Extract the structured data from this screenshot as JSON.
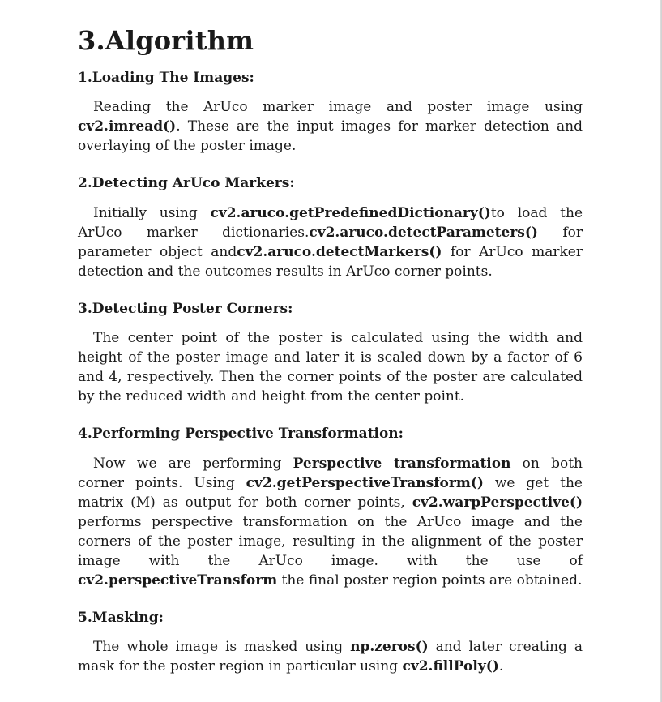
{
  "heading": "3.Algorithm",
  "sections": [
    {
      "title": "1.Loading The Images:",
      "runs": [
        {
          "t": "Reading the ArUco marker image and poster image using ",
          "b": false
        },
        {
          "t": "cv2.imread()",
          "b": true
        },
        {
          "t": ". These are the input images for marker detection and overlaying of the poster image.",
          "b": false
        }
      ]
    },
    {
      "title": "2.Detecting ArUco Markers:",
      "runs": [
        {
          "t": "Initially using ",
          "b": false
        },
        {
          "t": "cv2.aruco.getPredefinedDictionary()",
          "b": true
        },
        {
          "t": "to load the ArUco marker dictionaries.",
          "b": false
        },
        {
          "t": "cv2.aruco.detectParameters()",
          "b": true
        },
        {
          "t": " for parameter object and",
          "b": false
        },
        {
          "t": "cv2.aruco.detectMarkers()",
          "b": true
        },
        {
          "t": " for ArUco marker detection and the outcomes results in ArUco corner points.",
          "b": false
        }
      ]
    },
    {
      "title": "3.Detecting Poster Corners:",
      "runs": [
        {
          "t": "The center point of the poster is calculated using the width and height of the poster image and later it is scaled down by a factor of 6 and 4, respectively. Then the corner points of the poster are calculated by the reduced width and height from the center point.",
          "b": false
        }
      ]
    },
    {
      "title": "4.Performing Perspective Transformation:",
      "runs": [
        {
          "t": "Now we are performing ",
          "b": false
        },
        {
          "t": "Perspective transformation",
          "b": true
        },
        {
          "t": " on both corner points. Using ",
          "b": false
        },
        {
          "t": "cv2.getPerspectiveTransform()",
          "b": true
        },
        {
          "t": " we get the matrix (M) as output for both corner points, ",
          "b": false
        },
        {
          "t": "cv2.warpPerspective()",
          "b": true
        },
        {
          "t": " performs perspective transformation on the ArUco image and the corners of the poster image, resulting in the alignment of the poster image with the ArUco image. with the use of ",
          "b": false
        },
        {
          "t": "cv2.perspectiveTransform",
          "b": true
        },
        {
          "t": " the final poster region points are obtained.",
          "b": false
        }
      ]
    },
    {
      "title": "5.Masking:",
      "runs": [
        {
          "t": "The whole image is masked using ",
          "b": false
        },
        {
          "t": "np.zeros()",
          "b": true
        },
        {
          "t": " and later creating a mask for the poster region in particular using ",
          "b": false
        },
        {
          "t": "cv2.fillPoly()",
          "b": true
        },
        {
          "t": ".",
          "b": false
        }
      ]
    }
  ]
}
